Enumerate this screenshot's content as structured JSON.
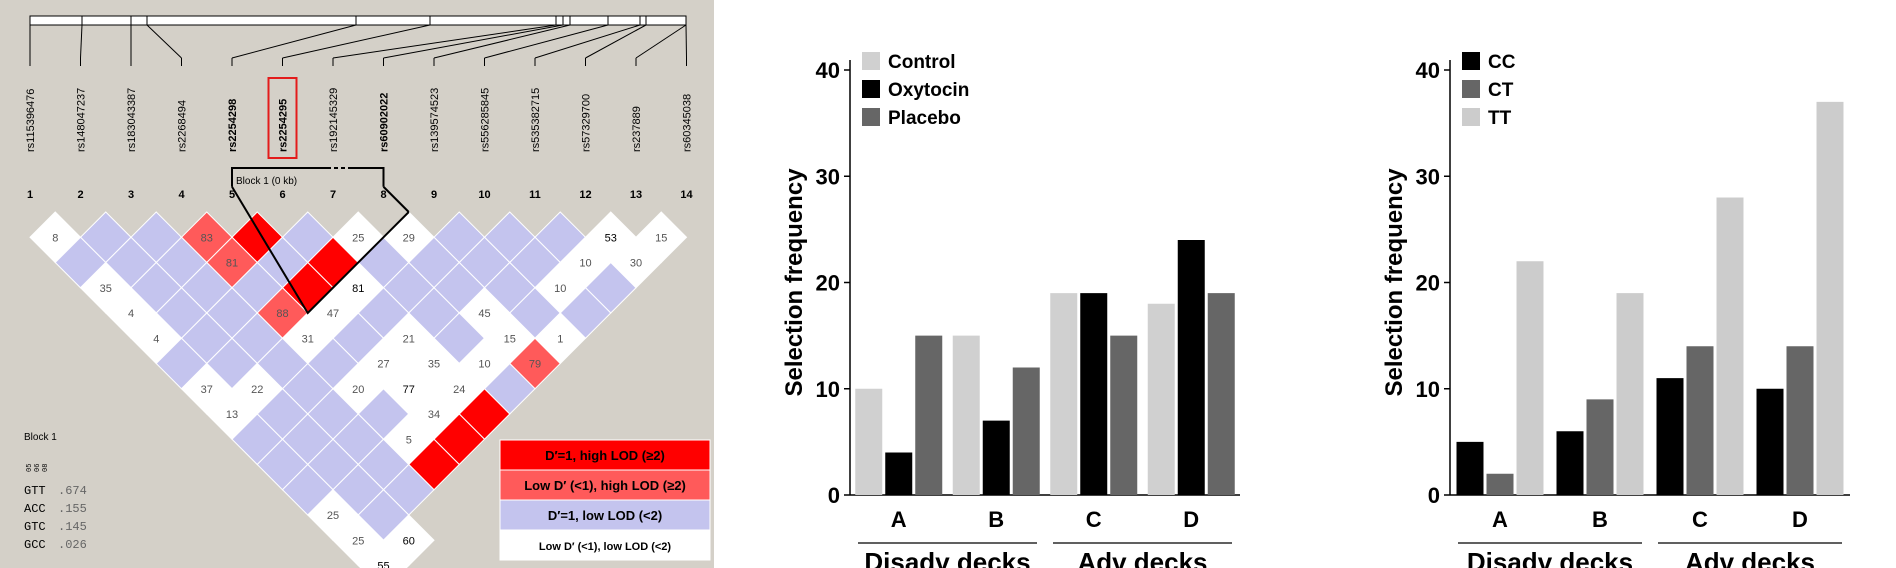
{
  "ld_plot": {
    "snps": [
      "rs115396476",
      "rs148047237",
      "rs183043387",
      "rs2268494",
      "rs2254298",
      "rs2254295",
      "rs192145329",
      "rs60902022",
      "rs139574523",
      "rs556285845",
      "rs535382715",
      "rs57329700",
      "rs237889",
      "rs60345038"
    ],
    "bold_snps": [
      4,
      5,
      7
    ],
    "highlighted_snp": 5,
    "indices": [
      "1",
      "2",
      "3",
      "4",
      "5",
      "6",
      "7",
      "8",
      "9",
      "10",
      "11",
      "12",
      "13",
      "14"
    ],
    "block_label": "Block 1 (0 kb)",
    "haplotype_block_title": "Block 1",
    "haplotype_header": "05 06 08",
    "haplotypes": [
      {
        "hap": "GTT",
        "freq": ".674"
      },
      {
        "hap": "ACC",
        "freq": ".155"
      },
      {
        "hap": "GTC",
        "freq": ".145"
      },
      {
        "hap": "GCC",
        "freq": ".026"
      }
    ],
    "cells": [
      {
        "i": 1,
        "j": 2,
        "v": "8",
        "t": "w"
      },
      {
        "i": 2,
        "j": 3,
        "v": "",
        "t": "b"
      },
      {
        "i": 3,
        "j": 4,
        "v": "",
        "t": "b"
      },
      {
        "i": 4,
        "j": 5,
        "v": "83",
        "t": "p"
      },
      {
        "i": 5,
        "j": 6,
        "v": "",
        "t": "r"
      },
      {
        "i": 6,
        "j": 7,
        "v": "",
        "t": "b"
      },
      {
        "i": 7,
        "j": 8,
        "v": "25",
        "t": "w"
      },
      {
        "i": 8,
        "j": 9,
        "v": "29",
        "t": "w"
      },
      {
        "i": 9,
        "j": 10,
        "v": "",
        "t": "b"
      },
      {
        "i": 10,
        "j": 11,
        "v": "",
        "t": "b"
      },
      {
        "i": 11,
        "j": 12,
        "v": "",
        "t": "b"
      },
      {
        "i": 12,
        "j": 13,
        "v": "53",
        "t": "w",
        "dark": true
      },
      {
        "i": 13,
        "j": 14,
        "v": "15",
        "t": "w"
      },
      {
        "i": 1,
        "j": 3,
        "v": "",
        "t": "b"
      },
      {
        "i": 2,
        "j": 4,
        "v": "",
        "t": "b"
      },
      {
        "i": 3,
        "j": 5,
        "v": "",
        "t": "b"
      },
      {
        "i": 4,
        "j": 6,
        "v": "81",
        "t": "p"
      },
      {
        "i": 5,
        "j": 7,
        "v": "",
        "t": "b"
      },
      {
        "i": 6,
        "j": 8,
        "v": "",
        "t": "r"
      },
      {
        "i": 7,
        "j": 9,
        "v": "",
        "t": "b"
      },
      {
        "i": 8,
        "j": 10,
        "v": "",
        "t": "b"
      },
      {
        "i": 9,
        "j": 11,
        "v": "",
        "t": "b"
      },
      {
        "i": 10,
        "j": 12,
        "v": "",
        "t": "b"
      },
      {
        "i": 11,
        "j": 13,
        "v": "10",
        "t": "w"
      },
      {
        "i": 12,
        "j": 14,
        "v": "30",
        "t": "w"
      },
      {
        "i": 1,
        "j": 4,
        "v": "35",
        "t": "w"
      },
      {
        "i": 2,
        "j": 5,
        "v": "",
        "t": "b"
      },
      {
        "i": 3,
        "j": 6,
        "v": "",
        "t": "b"
      },
      {
        "i": 4,
        "j": 7,
        "v": "",
        "t": "b"
      },
      {
        "i": 5,
        "j": 8,
        "v": "",
        "t": "r"
      },
      {
        "i": 6,
        "j": 9,
        "v": "81",
        "t": "w",
        "dark": true
      },
      {
        "i": 7,
        "j": 10,
        "v": "",
        "t": "b"
      },
      {
        "i": 8,
        "j": 11,
        "v": "",
        "t": "b"
      },
      {
        "i": 9,
        "j": 12,
        "v": "",
        "t": "b"
      },
      {
        "i": 10,
        "j": 13,
        "v": "10",
        "t": "w"
      },
      {
        "i": 11,
        "j": 14,
        "v": "",
        "t": "b"
      },
      {
        "i": 1,
        "j": 5,
        "v": "4",
        "t": "w"
      },
      {
        "i": 2,
        "j": 6,
        "v": "",
        "t": "b"
      },
      {
        "i": 3,
        "j": 7,
        "v": "",
        "t": "b"
      },
      {
        "i": 4,
        "j": 8,
        "v": "88",
        "t": "p"
      },
      {
        "i": 5,
        "j": 9,
        "v": "47",
        "t": "w"
      },
      {
        "i": 6,
        "j": 10,
        "v": "",
        "t": "b"
      },
      {
        "i": 7,
        "j": 11,
        "v": "",
        "t": "b"
      },
      {
        "i": 8,
        "j": 12,
        "v": "45",
        "t": "w"
      },
      {
        "i": 9,
        "j": 13,
        "v": "",
        "t": "b"
      },
      {
        "i": 10,
        "j": 14,
        "v": "",
        "t": "b"
      },
      {
        "i": 1,
        "j": 6,
        "v": "4",
        "t": "w"
      },
      {
        "i": 2,
        "j": 7,
        "v": "",
        "t": "b"
      },
      {
        "i": 3,
        "j": 8,
        "v": "",
        "t": "b"
      },
      {
        "i": 4,
        "j": 9,
        "v": "31",
        "t": "w"
      },
      {
        "i": 5,
        "j": 10,
        "v": "",
        "t": "b"
      },
      {
        "i": 6,
        "j": 11,
        "v": "21",
        "t": "w"
      },
      {
        "i": 7,
        "j": 12,
        "v": "",
        "t": "b"
      },
      {
        "i": 8,
        "j": 13,
        "v": "15",
        "t": "w"
      },
      {
        "i": 9,
        "j": 14,
        "v": "1",
        "t": "w"
      },
      {
        "i": 1,
        "j": 7,
        "v": "",
        "t": "b"
      },
      {
        "i": 2,
        "j": 8,
        "v": "",
        "t": "b"
      },
      {
        "i": 3,
        "j": 9,
        "v": "",
        "t": "b"
      },
      {
        "i": 4,
        "j": 10,
        "v": "",
        "t": "b"
      },
      {
        "i": 5,
        "j": 11,
        "v": "27",
        "t": "w"
      },
      {
        "i": 6,
        "j": 12,
        "v": "35",
        "t": "w"
      },
      {
        "i": 7,
        "j": 13,
        "v": "10",
        "t": "w"
      },
      {
        "i": 8,
        "j": 14,
        "v": "79",
        "t": "p"
      },
      {
        "i": 1,
        "j": 8,
        "v": "37",
        "t": "w"
      },
      {
        "i": 2,
        "j": 9,
        "v": "22",
        "t": "w"
      },
      {
        "i": 3,
        "j": 10,
        "v": "",
        "t": "b"
      },
      {
        "i": 4,
        "j": 11,
        "v": "20",
        "t": "w"
      },
      {
        "i": 5,
        "j": 12,
        "v": "77",
        "t": "w",
        "dark": true
      },
      {
        "i": 6,
        "j": 13,
        "v": "24",
        "t": "w"
      },
      {
        "i": 7,
        "j": 14,
        "v": "",
        "t": "b"
      },
      {
        "i": 1,
        "j": 9,
        "v": "13",
        "t": "w"
      },
      {
        "i": 2,
        "j": 10,
        "v": "",
        "t": "b"
      },
      {
        "i": 3,
        "j": 11,
        "v": "",
        "t": "b"
      },
      {
        "i": 4,
        "j": 12,
        "v": "",
        "t": "b"
      },
      {
        "i": 5,
        "j": 13,
        "v": "34",
        "t": "w"
      },
      {
        "i": 6,
        "j": 14,
        "v": "",
        "t": "r"
      },
      {
        "i": 1,
        "j": 10,
        "v": "",
        "t": "b"
      },
      {
        "i": 2,
        "j": 11,
        "v": "",
        "t": "b"
      },
      {
        "i": 3,
        "j": 12,
        "v": "",
        "t": "b"
      },
      {
        "i": 4,
        "j": 13,
        "v": "5",
        "t": "w"
      },
      {
        "i": 5,
        "j": 14,
        "v": "",
        "t": "r"
      },
      {
        "i": 1,
        "j": 11,
        "v": "",
        "t": "b"
      },
      {
        "i": 2,
        "j": 12,
        "v": "",
        "t": "b"
      },
      {
        "i": 3,
        "j": 13,
        "v": "",
        "t": "b"
      },
      {
        "i": 4,
        "j": 14,
        "v": "",
        "t": "r"
      },
      {
        "i": 1,
        "j": 12,
        "v": "",
        "t": "b"
      },
      {
        "i": 2,
        "j": 13,
        "v": "",
        "t": "b"
      },
      {
        "i": 3,
        "j": 14,
        "v": "",
        "t": "b"
      },
      {
        "i": 1,
        "j": 13,
        "v": "25",
        "t": "w"
      },
      {
        "i": 2,
        "j": 14,
        "v": "",
        "t": "b"
      },
      {
        "i": 1,
        "j": 14,
        "v": "25",
        "t": "w"
      },
      {
        "i": 2,
        "j": 15,
        "v": "60",
        "t": "w",
        "dark": true
      },
      {
        "i": 1,
        "j": 15,
        "v": "55",
        "t": "w",
        "dark": true
      }
    ],
    "legend": [
      {
        "label": "D′=1, high LOD (≥2)",
        "color": "#ff0000",
        "text_color": "#000000"
      },
      {
        "label": "Low D′ (<1), high LOD (≥2)",
        "color": "#ff5a5a",
        "text_color": "#000000"
      },
      {
        "label": "D′=1, low LOD (<2)",
        "color": "#c4c4ee",
        "text_color": "#000000"
      },
      {
        "label": "Low D′ (<1), low LOD (<2)",
        "color": "#ffffff",
        "text_color": "#000000"
      }
    ],
    "colors": {
      "r": "#ff0000",
      "p": "#ff5a5a",
      "b": "#c4c4ee",
      "w": "#ffffff",
      "panel_bg": "#d4d0c8"
    }
  },
  "chart_data": [
    {
      "type": "bar",
      "categories": [
        "A",
        "B",
        "C",
        "D"
      ],
      "group_labels": [
        {
          "label": "Disadv decks",
          "span": [
            0,
            1
          ]
        },
        {
          "label": "Adv decks",
          "span": [
            2,
            3
          ]
        }
      ],
      "series": [
        {
          "name": "Control",
          "values": [
            10,
            15,
            19,
            18
          ],
          "color": "#d0d0d0"
        },
        {
          "name": "Oxytocin",
          "values": [
            4,
            7,
            19,
            24
          ],
          "color": "#000000"
        },
        {
          "name": "Placebo",
          "values": [
            15,
            12,
            15,
            19
          ],
          "color": "#666666"
        }
      ],
      "xlabel": "",
      "ylabel": "Selection frequency",
      "ylim": [
        0,
        40
      ],
      "yticks": [
        0,
        10,
        20,
        30,
        40
      ],
      "legend_position": "top-left",
      "grid": false
    },
    {
      "type": "bar",
      "categories": [
        "A",
        "B",
        "C",
        "D"
      ],
      "group_labels": [
        {
          "label": "Disadv decks",
          "span": [
            0,
            1
          ]
        },
        {
          "label": "Adv decks",
          "span": [
            2,
            3
          ]
        }
      ],
      "series": [
        {
          "name": "CC",
          "values": [
            5,
            6,
            11,
            10
          ],
          "color": "#000000"
        },
        {
          "name": "CT",
          "values": [
            2,
            9,
            14,
            14
          ],
          "color": "#666666"
        },
        {
          "name": "TT",
          "values": [
            22,
            19,
            28,
            37
          ],
          "color": "#cccccc"
        }
      ],
      "xlabel": "",
      "ylabel": "Selection frequency",
      "ylim": [
        0,
        40
      ],
      "yticks": [
        0,
        10,
        20,
        30,
        40
      ],
      "legend_position": "top-left",
      "grid": false
    }
  ]
}
